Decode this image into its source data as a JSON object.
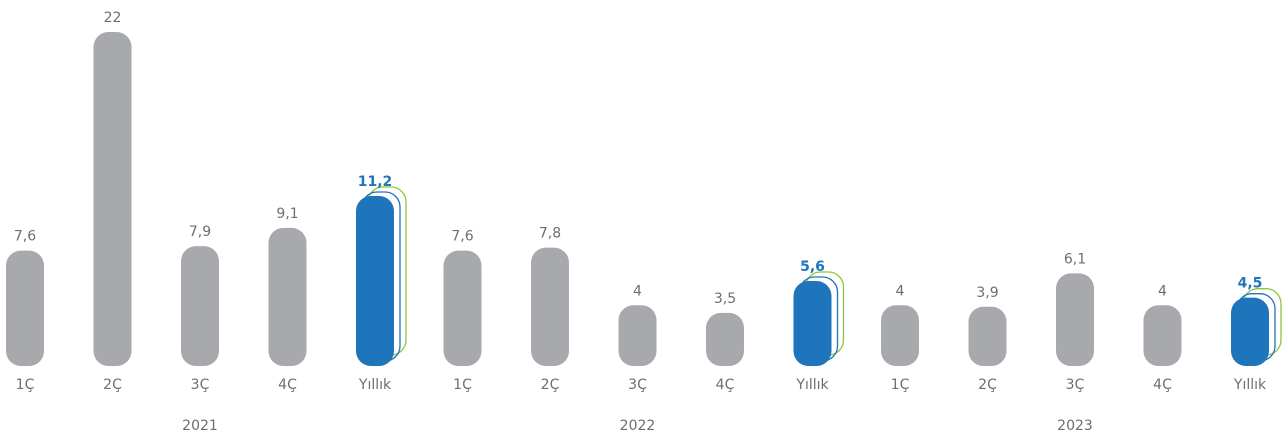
{
  "chart_data": {
    "type": "bar",
    "categories": [
      "1Ç",
      "2Ç",
      "3Ç",
      "4Ç",
      "Yıllık",
      "1Ç",
      "2Ç",
      "3Ç",
      "4Ç",
      "Yıllık",
      "1Ç",
      "2Ç",
      "3Ç",
      "4Ç",
      "Yıllık"
    ],
    "values": [
      7.6,
      22,
      7.9,
      9.1,
      11.2,
      7.6,
      7.8,
      4,
      3.5,
      5.6,
      4,
      3.9,
      6.1,
      4,
      4.5
    ],
    "value_labels": [
      "7,6",
      "22",
      "7,9",
      "9,1",
      "11,2",
      "7,6",
      "7,8",
      "4",
      "3,5",
      "5,6",
      "4",
      "3,9",
      "6,1",
      "4",
      "4,5"
    ],
    "highlighted": [
      false,
      false,
      false,
      false,
      true,
      false,
      false,
      false,
      false,
      true,
      false,
      false,
      false,
      false,
      true
    ],
    "groups": [
      {
        "label": "2021",
        "start": 0,
        "end": 4
      },
      {
        "label": "2022",
        "start": 5,
        "end": 9
      },
      {
        "label": "2023",
        "start": 10,
        "end": 14
      }
    ],
    "colors": {
      "bar": "#a7a9ac",
      "highlight": "#1f75bc",
      "highlight_outline_blue": "#1f75bc",
      "highlight_outline_green": "#8dc63f",
      "text": "#6d6e71"
    },
    "ylim": [
      0,
      22
    ],
    "grid": false,
    "legend": "none"
  }
}
